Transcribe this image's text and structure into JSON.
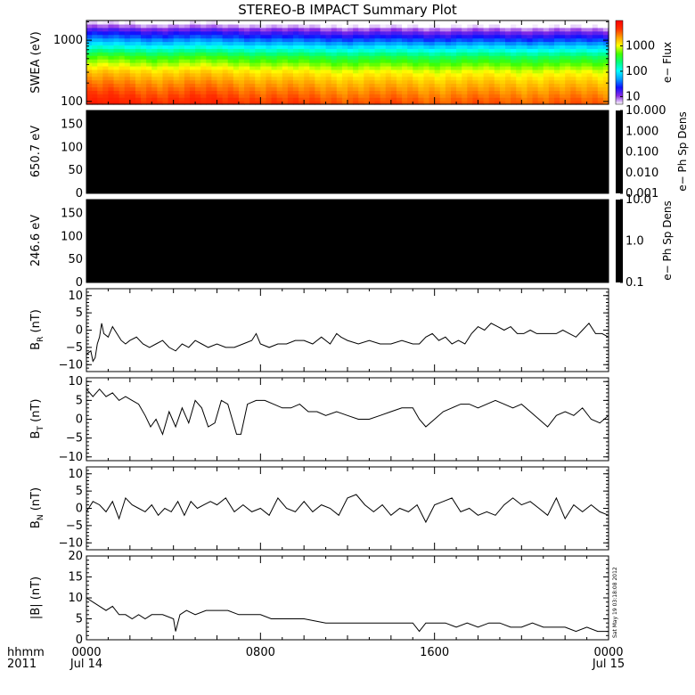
{
  "colors": {
    "frame": "#000000",
    "trace": "#000000",
    "blank_panel": "#000000",
    "background": "#ffffff"
  },
  "title": "STEREO-B IMPACT Summary Plot",
  "stamp": "Sat May 19 03:18:08 2012",
  "time_axis": {
    "row1_label": "hhmm",
    "row2_label": "2011",
    "ticks": [
      {
        "t": 0,
        "label": "0000",
        "sub": "Jul 14"
      },
      {
        "t": 8,
        "label": "0800",
        "sub": ""
      },
      {
        "t": 16,
        "label": "1600",
        "sub": ""
      },
      {
        "t": 24,
        "label": "0000",
        "sub": "Jul 15"
      }
    ],
    "range_hours": [
      0,
      24
    ]
  },
  "chart_data": [
    {
      "id": "swea",
      "type": "heatmap",
      "ylabel": "SWEA (eV)",
      "yscale": "log",
      "ylim": [
        90,
        2100
      ],
      "yticks": [
        {
          "v": 100,
          "label": "100"
        },
        {
          "v": 1000,
          "label": "1000"
        }
      ],
      "colorbar": {
        "label": "e− Flux",
        "scale": "log",
        "range": [
          5,
          10000
        ],
        "ticks": [
          {
            "v": 10,
            "label": "10"
          },
          {
            "v": 100,
            "label": "100"
          },
          {
            "v": 1000,
            "label": "1000"
          }
        ],
        "colormap": [
          "#ffffff",
          "#8a2be2",
          "#1010ff",
          "#00a0ff",
          "#00ffff",
          "#00ff80",
          "#40ff00",
          "#ffff00",
          "#ffa000",
          "#ff3000",
          "#ff0000"
        ]
      },
      "spectrum_profile": [
        {
          "energy": 2000,
          "flux": 4
        },
        {
          "energy": 1700,
          "flux": 7
        },
        {
          "energy": 1400,
          "flux": 15
        },
        {
          "energy": 1100,
          "flux": 30
        },
        {
          "energy": 900,
          "flux": 60
        },
        {
          "energy": 700,
          "flux": 150
        },
        {
          "energy": 550,
          "flux": 350
        },
        {
          "energy": 400,
          "flux": 700
        },
        {
          "energy": 300,
          "flux": 1300
        },
        {
          "energy": 200,
          "flux": 2200
        },
        {
          "energy": 140,
          "flux": 3200
        },
        {
          "energy": 100,
          "flux": 4500
        }
      ],
      "intensity_by_time": [
        {
          "t": 0,
          "scale": 1.35
        },
        {
          "t": 1.5,
          "scale": 1.25
        },
        {
          "t": 3,
          "scale": 1.15
        },
        {
          "t": 5,
          "scale": 1.2
        },
        {
          "t": 7,
          "scale": 1.1
        },
        {
          "t": 9,
          "scale": 0.95
        },
        {
          "t": 12,
          "scale": 0.85
        },
        {
          "t": 16,
          "scale": 0.8
        },
        {
          "t": 20,
          "scale": 0.78
        },
        {
          "t": 24,
          "scale": 0.75
        }
      ]
    },
    {
      "id": "pad650",
      "type": "heatmap",
      "ylabel": "650.7 eV",
      "ylim": [
        0,
        180
      ],
      "yticks": [
        {
          "v": 0,
          "label": "0"
        },
        {
          "v": 50,
          "label": "50"
        },
        {
          "v": 100,
          "label": "100"
        },
        {
          "v": 150,
          "label": "150"
        }
      ],
      "colorbar": {
        "label": "e− Ph Sp Dens",
        "scale": "log",
        "range": [
          0.001,
          10
        ],
        "ticks": [
          {
            "v": 10,
            "label": "10.000"
          },
          {
            "v": 1,
            "label": "1.000"
          },
          {
            "v": 0.1,
            "label": "0.100"
          },
          {
            "v": 0.01,
            "label": "0.010"
          },
          {
            "v": 0.001,
            "label": "0.001"
          }
        ]
      },
      "values": "no data (panel filled black)"
    },
    {
      "id": "pad246",
      "type": "heatmap",
      "ylabel": "246.6 eV",
      "ylim": [
        0,
        180
      ],
      "yticks": [
        {
          "v": 0,
          "label": "0"
        },
        {
          "v": 50,
          "label": "50"
        },
        {
          "v": 100,
          "label": "100"
        },
        {
          "v": 150,
          "label": "150"
        }
      ],
      "colorbar": {
        "label": "e− Ph Sp Dens",
        "scale": "log",
        "range": [
          0.1,
          10
        ],
        "ticks": [
          {
            "v": 10,
            "label": "10.0"
          },
          {
            "v": 1,
            "label": "1.0"
          },
          {
            "v": 0.1,
            "label": "0.1"
          }
        ]
      },
      "values": "no data (panel filled black)"
    },
    {
      "id": "br",
      "type": "line",
      "ylabel_main": "B",
      "ylabel_sub": "R",
      "ylabel_unit": " (nT)",
      "ylim": [
        -12,
        12
      ],
      "yticks": [
        {
          "v": -10,
          "label": "−10"
        },
        {
          "v": -5,
          "label": "−5"
        },
        {
          "v": 0,
          "label": "0"
        },
        {
          "v": 5,
          "label": "5"
        },
        {
          "v": 10,
          "label": "10"
        }
      ],
      "x": [
        0,
        0.2,
        0.3,
        0.4,
        0.5,
        0.6,
        0.7,
        0.8,
        1.0,
        1.2,
        1.4,
        1.6,
        1.8,
        2.0,
        2.3,
        2.6,
        2.9,
        3.2,
        3.5,
        3.8,
        4.1,
        4.4,
        4.7,
        5.0,
        5.3,
        5.6,
        6.0,
        6.4,
        6.8,
        7.2,
        7.6,
        7.8,
        8.0,
        8.4,
        8.8,
        9.2,
        9.6,
        10.0,
        10.4,
        10.8,
        11.2,
        11.5,
        11.7,
        12.0,
        12.5,
        13.0,
        13.5,
        14.0,
        14.5,
        15.0,
        15.3,
        15.6,
        15.9,
        16.2,
        16.5,
        16.8,
        17.1,
        17.4,
        17.7,
        18.0,
        18.3,
        18.6,
        18.9,
        19.2,
        19.5,
        19.8,
        20.1,
        20.4,
        20.7,
        21.0,
        21.3,
        21.6,
        21.9,
        22.2,
        22.5,
        22.8,
        23.1,
        23.4,
        23.7,
        24.0
      ],
      "y": [
        -7,
        -6,
        -9,
        -8,
        -4,
        -2,
        2,
        -1,
        -2,
        1,
        -1,
        -3,
        -4,
        -3,
        -2,
        -4,
        -5,
        -4,
        -3,
        -5,
        -6,
        -4,
        -5,
        -3,
        -4,
        -5,
        -4,
        -5,
        -5,
        -4,
        -3,
        -1,
        -4,
        -5,
        -4,
        -4,
        -3,
        -3,
        -4,
        -2,
        -4,
        -1,
        -2,
        -3,
        -4,
        -3,
        -4,
        -4,
        -3,
        -4,
        -4,
        -2,
        -1,
        -3,
        -2,
        -4,
        -3,
        -4,
        -1,
        1,
        0,
        2,
        1,
        0,
        1,
        -1,
        -1,
        0,
        -1,
        -1,
        -1,
        -1,
        0,
        -1,
        -2,
        0,
        2,
        -1,
        -1,
        -2
      ]
    },
    {
      "id": "bt",
      "type": "line",
      "ylabel_main": "B",
      "ylabel_sub": "T",
      "ylabel_unit": " (nT)",
      "ylim": [
        -11,
        11
      ],
      "yticks": [
        {
          "v": -10,
          "label": "−10"
        },
        {
          "v": -5,
          "label": "−5"
        },
        {
          "v": 0,
          "label": "0"
        },
        {
          "v": 5,
          "label": "5"
        },
        {
          "v": 10,
          "label": "10"
        }
      ],
      "x": [
        0,
        0.3,
        0.6,
        0.9,
        1.2,
        1.5,
        1.8,
        2.1,
        2.4,
        2.7,
        2.95,
        3.2,
        3.5,
        3.8,
        4.1,
        4.4,
        4.7,
        5.0,
        5.3,
        5.6,
        5.9,
        6.2,
        6.5,
        6.7,
        6.9,
        7.1,
        7.4,
        7.8,
        8.2,
        8.6,
        9.0,
        9.4,
        9.8,
        10.2,
        10.6,
        11.0,
        11.5,
        12.0,
        12.5,
        13.0,
        13.5,
        14.0,
        14.5,
        15.0,
        15.3,
        15.6,
        16.0,
        16.4,
        16.8,
        17.2,
        17.6,
        18.0,
        18.4,
        18.8,
        19.2,
        19.6,
        20.0,
        20.4,
        20.8,
        21.2,
        21.6,
        22.0,
        22.4,
        22.8,
        23.2,
        23.6,
        24.0
      ],
      "y": [
        8,
        6,
        8,
        6,
        7,
        5,
        6,
        5,
        4,
        1,
        -2,
        0,
        -4,
        2,
        -2,
        3,
        -1,
        5,
        3,
        -2,
        -1,
        5,
        4,
        0,
        -4,
        -4,
        4,
        5,
        5,
        4,
        3,
        3,
        4,
        2,
        2,
        1,
        2,
        1,
        0,
        0,
        1,
        2,
        3,
        3,
        0,
        -2,
        0,
        2,
        3,
        4,
        4,
        3,
        4,
        5,
        4,
        3,
        4,
        2,
        0,
        -2,
        1,
        2,
        1,
        3,
        0,
        -1,
        1
      ]
    },
    {
      "id": "bn",
      "type": "line",
      "ylabel_main": "B",
      "ylabel_sub": "N",
      "ylabel_unit": " (nT)",
      "ylim": [
        -12,
        12
      ],
      "yticks": [
        {
          "v": -10,
          "label": "−10"
        },
        {
          "v": -5,
          "label": "−5"
        },
        {
          "v": 0,
          "label": "0"
        },
        {
          "v": 5,
          "label": "5"
        },
        {
          "v": 10,
          "label": "10"
        }
      ],
      "x": [
        0,
        0.3,
        0.6,
        0.9,
        1.2,
        1.5,
        1.8,
        2.1,
        2.4,
        2.7,
        3.0,
        3.3,
        3.6,
        3.9,
        4.2,
        4.5,
        4.8,
        5.1,
        5.4,
        5.7,
        6.0,
        6.4,
        6.8,
        7.2,
        7.6,
        8.0,
        8.4,
        8.8,
        9.2,
        9.6,
        10.0,
        10.4,
        10.8,
        11.2,
        11.6,
        12.0,
        12.4,
        12.8,
        13.2,
        13.6,
        14.0,
        14.4,
        14.8,
        15.2,
        15.6,
        16.0,
        16.4,
        16.8,
        17.2,
        17.6,
        18.0,
        18.4,
        18.8,
        19.2,
        19.6,
        20.0,
        20.4,
        20.8,
        21.2,
        21.6,
        22.0,
        22.4,
        22.8,
        23.2,
        23.6,
        24.0
      ],
      "y": [
        -1,
        2,
        1,
        -1,
        2,
        -3,
        3,
        1,
        0,
        -1,
        1,
        -2,
        0,
        -1,
        2,
        -2,
        2,
        0,
        1,
        2,
        1,
        3,
        -1,
        1,
        -1,
        0,
        -2,
        3,
        0,
        -1,
        2,
        -1,
        1,
        0,
        -2,
        3,
        4,
        1,
        -1,
        1,
        -2,
        0,
        -1,
        1,
        -4,
        1,
        2,
        3,
        -1,
        0,
        -2,
        -1,
        -2,
        1,
        3,
        1,
        2,
        0,
        -2,
        3,
        -3,
        1,
        -1,
        1,
        -1,
        -2
      ]
    },
    {
      "id": "bmag",
      "type": "line",
      "ylabel_main": "|B| (nT)",
      "ylim": [
        0,
        20
      ],
      "yticks": [
        {
          "v": 0,
          "label": "0"
        },
        {
          "v": 5,
          "label": "5"
        },
        {
          "v": 10,
          "label": "10"
        },
        {
          "v": 15,
          "label": "15"
        },
        {
          "v": 20,
          "label": "20"
        }
      ],
      "x": [
        0,
        0.3,
        0.6,
        0.9,
        1.2,
        1.5,
        1.8,
        2.1,
        2.4,
        2.7,
        3.0,
        3.5,
        4.0,
        4.1,
        4.3,
        4.6,
        5.0,
        5.5,
        6.0,
        6.5,
        7.0,
        7.5,
        8.0,
        8.5,
        9.0,
        9.5,
        10.0,
        11.0,
        12.0,
        13.0,
        14.0,
        15.0,
        15.3,
        15.6,
        16.0,
        16.5,
        17.0,
        17.5,
        18.0,
        18.5,
        19.0,
        19.5,
        20.0,
        20.5,
        21.0,
        21.5,
        22.0,
        22.5,
        23.0,
        23.5,
        24.0
      ],
      "y": [
        10,
        9,
        8,
        7,
        8,
        6,
        6,
        5,
        6,
        5,
        6,
        6,
        5,
        2,
        6,
        7,
        6,
        7,
        7,
        7,
        6,
        6,
        6,
        5,
        5,
        5,
        5,
        4,
        4,
        4,
        4,
        4,
        2,
        4,
        4,
        4,
        3,
        4,
        3,
        4,
        4,
        3,
        3,
        4,
        3,
        3,
        3,
        2,
        3,
        2,
        2
      ]
    }
  ]
}
